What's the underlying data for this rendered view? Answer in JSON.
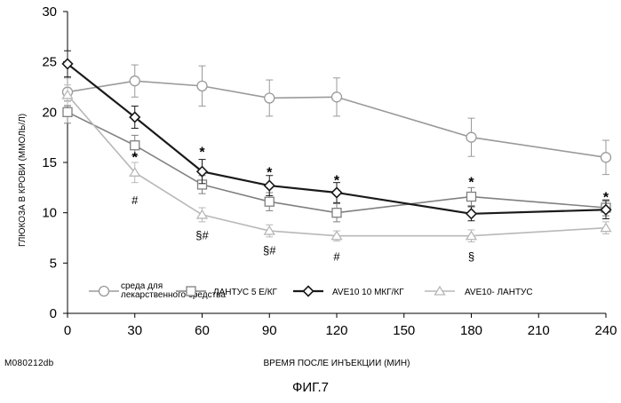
{
  "chart_data": {
    "type": "line",
    "xlabel": "ВРЕМЯ ПОСЛЕ ИНЪЕКЦИИ (МИН)",
    "ylabel": "ГЛЮКОЗА В КРОВИ (ММОЛЬ/Л)",
    "xlim": [
      0,
      240
    ],
    "ylim": [
      0,
      30
    ],
    "xticks": [
      0,
      30,
      60,
      90,
      120,
      150,
      180,
      210,
      240
    ],
    "yticks": [
      0,
      5,
      10,
      15,
      20,
      25,
      30
    ],
    "grid": false,
    "legend_position": "bottom-inside",
    "series": [
      {
        "name": "среда для лекарственного средства",
        "marker": "circle",
        "x": [
          0,
          30,
          60,
          90,
          120,
          180,
          240
        ],
        "y": [
          22.0,
          23.1,
          22.6,
          21.4,
          21.5,
          17.5,
          15.5
        ],
        "err": [
          1.4,
          1.6,
          2.0,
          1.8,
          1.9,
          1.9,
          1.7
        ]
      },
      {
        "name": "ЛАНТУС 5 Е/КГ",
        "marker": "square",
        "x": [
          0,
          30,
          60,
          90,
          120,
          180,
          240
        ],
        "y": [
          20.0,
          16.7,
          12.8,
          11.1,
          10.0,
          11.6,
          10.5
        ],
        "err": [
          1.1,
          1.0,
          0.9,
          0.9,
          0.9,
          0.9,
          0.8
        ]
      },
      {
        "name": "AVE10 10 МКГ/КГ",
        "marker": "diamond",
        "x": [
          0,
          30,
          60,
          90,
          120,
          180,
          240
        ],
        "y": [
          24.8,
          19.5,
          14.1,
          12.7,
          12.0,
          9.9,
          10.3
        ],
        "err": [
          1.3,
          1.1,
          1.2,
          1.0,
          1.0,
          0.7,
          0.9
        ]
      },
      {
        "name": "AVE10- ЛАНТУС",
        "marker": "triangle",
        "x": [
          0,
          30,
          60,
          90,
          120,
          180,
          240
        ],
        "y": [
          21.7,
          14.0,
          9.8,
          8.2,
          7.7,
          7.7,
          8.5
        ],
        "err": [
          1.0,
          1.0,
          0.7,
          0.6,
          0.5,
          0.6,
          0.6
        ]
      }
    ],
    "annotations": [
      {
        "text": "*",
        "x": 30,
        "y": 15.5,
        "style": "star"
      },
      {
        "text": "*",
        "x": 60,
        "y": 16.0,
        "style": "star"
      },
      {
        "text": "*",
        "x": 90,
        "y": 14.0,
        "style": "star"
      },
      {
        "text": "*",
        "x": 120,
        "y": 13.2,
        "style": "star"
      },
      {
        "text": "*",
        "x": 180,
        "y": 13.0,
        "style": "star"
      },
      {
        "text": "*",
        "x": 240,
        "y": 11.5,
        "style": "star"
      },
      {
        "text": "#",
        "x": 30,
        "y": 11.3,
        "style": "plain"
      },
      {
        "text": "§#",
        "x": 60,
        "y": 7.8,
        "style": "plain"
      },
      {
        "text": "§#",
        "x": 90,
        "y": 6.3,
        "style": "plain"
      },
      {
        "text": "#",
        "x": 120,
        "y": 5.7,
        "style": "plain"
      },
      {
        "text": "§",
        "x": 180,
        "y": 5.7,
        "style": "plain"
      }
    ]
  },
  "colors": {
    "vehicle": "#9a9a9a",
    "lantus": "#808080",
    "ave10": "#1a1a1a",
    "ave10_lantus": "#b8b8b8",
    "axis": "#000000"
  },
  "page": {
    "code": "M080212db",
    "figure_caption": "ФИГ.7"
  }
}
